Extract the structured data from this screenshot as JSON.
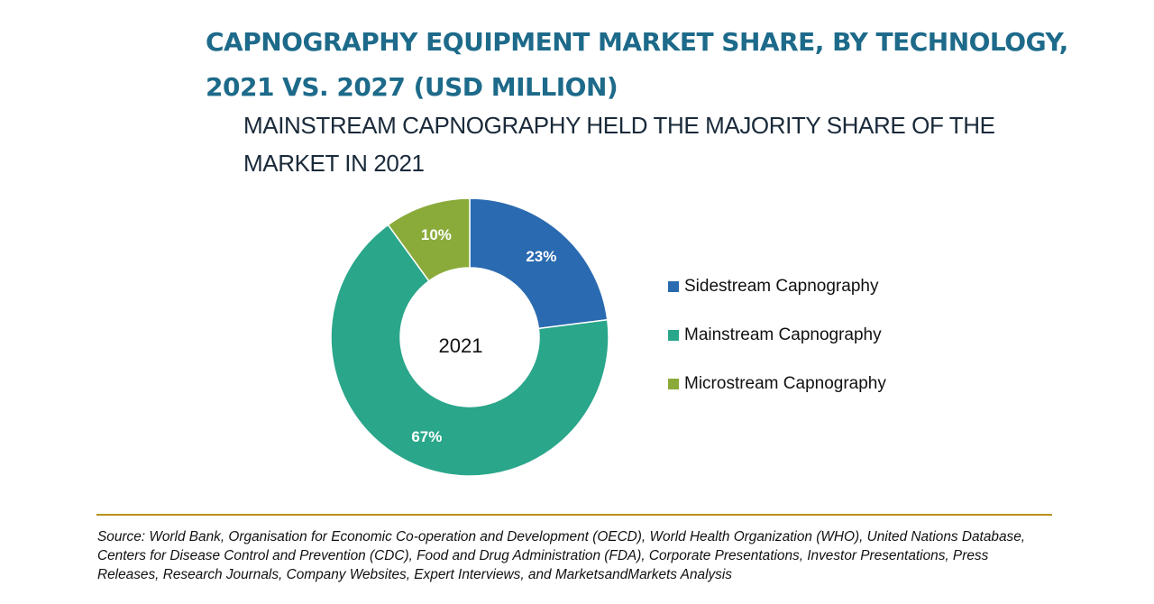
{
  "title": "CAPNOGRAPHY EQUIPMENT MARKET SHARE, BY TECHNOLOGY, 2021 VS. 2027 (USD MILLION)",
  "subtitle": "MAINSTREAM CAPNOGRAPHY HELD THE MAJORITY SHARE OF THE MARKET IN 2021",
  "chart_data": {
    "type": "pie",
    "variant": "donut",
    "center_label": "2021",
    "legend_position": "right",
    "slices": [
      {
        "name": "Sidestream Capnography",
        "value": 23,
        "label": "23%",
        "color": "#2a6ab0"
      },
      {
        "name": "Mainstream Capnography",
        "value": 67,
        "label": "67%",
        "color": "#2aa68a"
      },
      {
        "name": "Microstream Capnography",
        "value": 10,
        "label": "10%",
        "color": "#8aab3a"
      }
    ]
  },
  "colors": {
    "title": "#1d6a8a",
    "divider": "#b8911e",
    "slice_label": "#ffffff",
    "slice_border": "#ffffff"
  },
  "source": "Source: World Bank, Organisation for Economic Co-operation and Development (OECD), World Health Organization (WHO), United Nations Database, Centers for Disease Control and Prevention (CDC), Food and Drug Administration (FDA), Corporate Presentations, Investor Presentations, Press Releases, Research Journals, Company Websites, Expert Interviews, and MarketsandMarkets Analysis"
}
